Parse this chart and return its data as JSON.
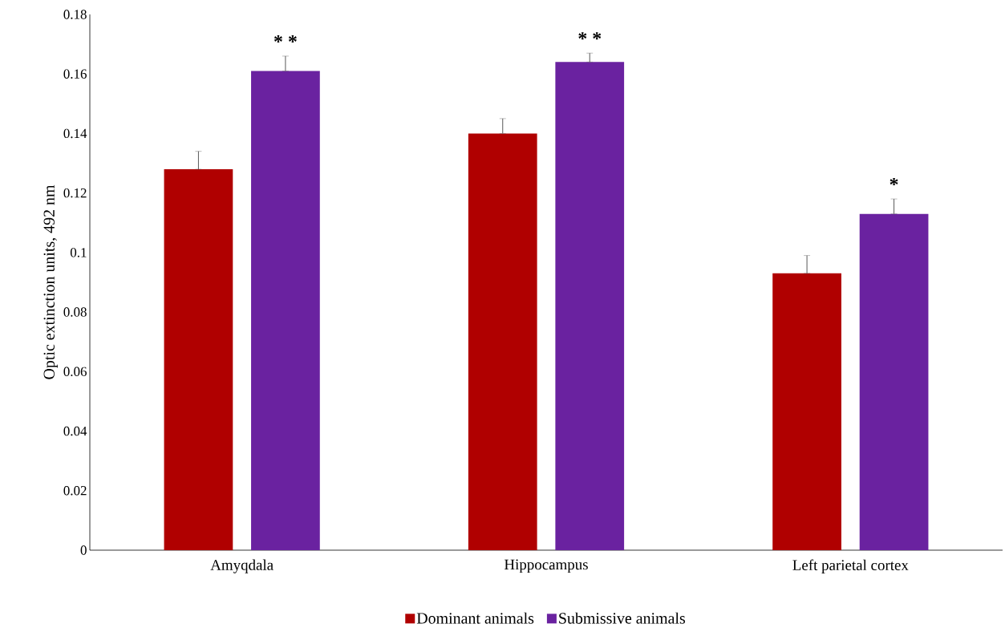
{
  "chart_data": {
    "type": "bar",
    "ylabel": "Optic extinction units,  492 nm",
    "categories": [
      "Amyqdala",
      "Hippocampus",
      "Left parietal cortex"
    ],
    "series": [
      {
        "name": "Dominant animals",
        "color": "#b00000",
        "values": [
          0.128,
          0.14,
          0.093
        ],
        "errors": [
          [
            0.128,
            0.134
          ],
          [
            0.14,
            0.145
          ],
          [
            0.093,
            0.099
          ]
        ]
      },
      {
        "name": "Submissive animals",
        "color": "#6a22a0",
        "values": [
          0.161,
          0.164,
          0.113
        ],
        "errors": [
          [
            0.161,
            0.166
          ],
          [
            0.164,
            0.167
          ],
          [
            0.113,
            0.118
          ]
        ]
      }
    ],
    "ylim": [
      0,
      0.18
    ],
    "yticks": [
      0,
      0.02,
      0.04,
      0.06,
      0.08,
      0.1,
      0.12,
      0.14,
      0.16,
      0.18
    ],
    "legend": "bottom",
    "annotations": [
      "* *",
      "* *",
      "*"
    ]
  }
}
